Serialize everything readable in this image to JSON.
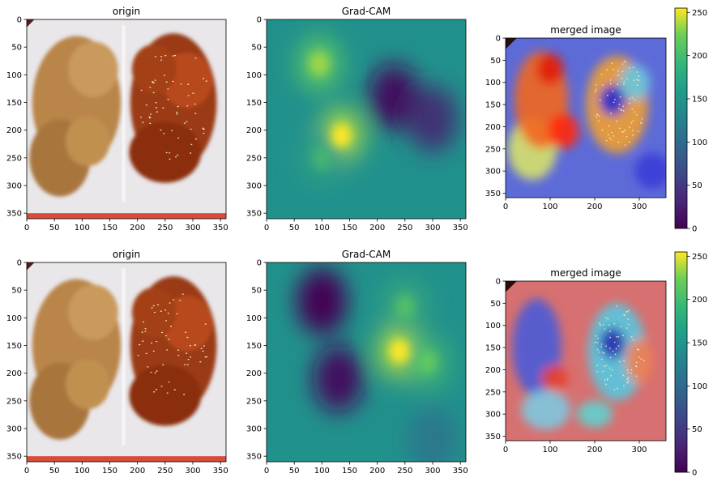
{
  "chart_data": [
    {
      "type": "heatmap",
      "title": "origin",
      "content": "photo",
      "photo": {
        "left_food": "fried chicken",
        "right_food": "sauced chicken with sesame"
      },
      "xticks": [
        0,
        50,
        100,
        150,
        200,
        250,
        300,
        350
      ],
      "yticks": [
        0,
        50,
        100,
        150,
        200,
        250,
        300,
        350
      ],
      "xlim": [
        0,
        360
      ],
      "ylim": [
        360,
        0
      ]
    },
    {
      "type": "heatmap",
      "title": "Grad-CAM",
      "colormap": "viridis",
      "content": "activation",
      "hotspots": [
        {
          "x": 95,
          "y": 80,
          "level": 0.85
        },
        {
          "x": 135,
          "y": 210,
          "level": 1.0
        },
        {
          "x": 100,
          "y": 250,
          "level": 0.65
        }
      ],
      "coldspots": [
        {
          "x": 230,
          "y": 140,
          "level": 0.05
        },
        {
          "x": 300,
          "y": 180,
          "level": 0.15
        }
      ],
      "xticks": [
        0,
        50,
        100,
        150,
        200,
        250,
        300,
        350
      ],
      "yticks": [
        0,
        50,
        100,
        150,
        200,
        250,
        300,
        350
      ],
      "xlim": [
        0,
        360
      ],
      "ylim": [
        360,
        0
      ]
    },
    {
      "type": "heatmap",
      "title": "merged image",
      "colormap": "jet",
      "content": "overlay",
      "xticks": [
        0,
        100,
        200,
        300
      ],
      "yticks": [
        0,
        50,
        100,
        150,
        200,
        250,
        300,
        350
      ],
      "xlim": [
        0,
        360
      ],
      "ylim": [
        360,
        0
      ],
      "colorbar": {
        "colormap": "viridis",
        "range": [
          0,
          255
        ],
        "ticks": [
          0,
          50,
          100,
          150,
          200,
          250
        ]
      }
    },
    {
      "type": "heatmap",
      "title": "origin",
      "content": "photo",
      "xticks": [
        0,
        50,
        100,
        150,
        200,
        250,
        300,
        350
      ],
      "yticks": [
        0,
        50,
        100,
        150,
        200,
        250,
        300,
        350
      ],
      "xlim": [
        0,
        360
      ],
      "ylim": [
        360,
        0
      ]
    },
    {
      "type": "heatmap",
      "title": "Grad-CAM",
      "colormap": "viridis",
      "content": "activation",
      "hotspots": [
        {
          "x": 240,
          "y": 160,
          "level": 1.0
        },
        {
          "x": 290,
          "y": 180,
          "level": 0.75
        },
        {
          "x": 250,
          "y": 80,
          "level": 0.7
        }
      ],
      "coldspots": [
        {
          "x": 100,
          "y": 70,
          "level": 0.0
        },
        {
          "x": 130,
          "y": 210,
          "level": 0.05
        },
        {
          "x": 300,
          "y": 320,
          "level": 0.4
        }
      ],
      "xticks": [
        0,
        50,
        100,
        150,
        200,
        250,
        300,
        350
      ],
      "yticks": [
        0,
        50,
        100,
        150,
        200,
        250,
        300,
        350
      ],
      "xlim": [
        0,
        360
      ],
      "ylim": [
        360,
        0
      ]
    },
    {
      "type": "heatmap",
      "title": "merged image",
      "colormap": "jet",
      "content": "overlay",
      "xticks": [
        0,
        100,
        200,
        300
      ],
      "yticks": [
        0,
        50,
        100,
        150,
        200,
        250,
        300,
        350
      ],
      "xlim": [
        0,
        360
      ],
      "ylim": [
        360,
        0
      ],
      "colorbar": {
        "colormap": "viridis",
        "range": [
          0,
          255
        ],
        "ticks": [
          0,
          50,
          100,
          150,
          200,
          250
        ]
      }
    }
  ],
  "colors": {
    "viridis_low": "#440154",
    "viridis_mid": "#21918c",
    "viridis_high": "#fde725",
    "chicken_fried": "#b98548",
    "chicken_sauced": "#9a3a12",
    "box": "#e9e7ea"
  }
}
